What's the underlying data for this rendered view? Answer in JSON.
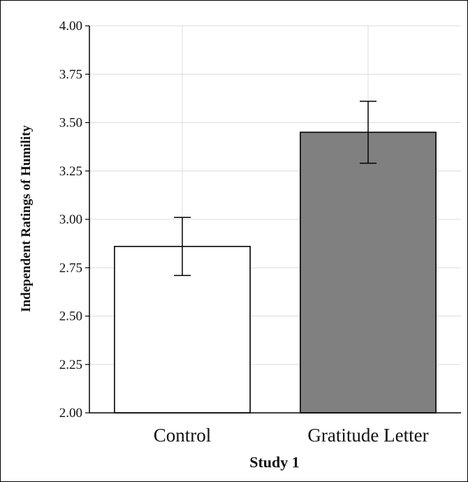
{
  "chart_data": {
    "type": "bar",
    "categories": [
      "Control",
      "Gratitude Letter"
    ],
    "values": [
      2.86,
      3.45
    ],
    "error_bars": [
      {
        "low": 2.71,
        "high": 3.01
      },
      {
        "low": 3.29,
        "high": 3.61
      }
    ],
    "bar_colors": [
      "#ffffff",
      "#808080"
    ],
    "xlabel": "Study 1",
    "ylabel": "Independent Ratings of Humility",
    "ylim": [
      2.0,
      4.0
    ],
    "yticks": [
      "2.00",
      "2.25",
      "2.50",
      "2.75",
      "3.00",
      "3.25",
      "3.50",
      "3.75",
      "4.00"
    ],
    "grid": true
  }
}
